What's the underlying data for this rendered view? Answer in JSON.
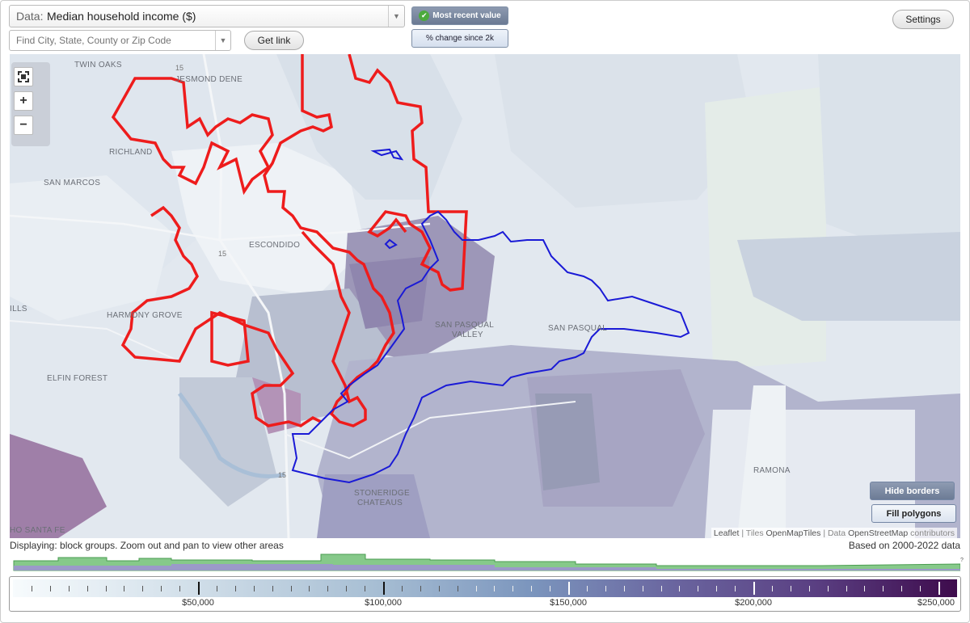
{
  "header": {
    "data_label": "Data:",
    "data_value": "Median household income ($)",
    "search_placeholder": "Find City, State, County or Zip Code",
    "get_link": "Get link",
    "most_recent": "Most recent value",
    "pct_change": "% change since 2k",
    "settings": "Settings"
  },
  "map": {
    "places": {
      "twin_oaks": "TWIN OAKS",
      "jesmond_dene": "JESMOND DENE",
      "richland": "RICHLAND",
      "san_marcos": "SAN MARCOS",
      "escondido": "ESCONDIDO",
      "harmony_grove": "HARMONY GROVE",
      "elfin_forest": "ELFIN FOREST",
      "san_pasqual_valley_1": "SAN PASQUAL",
      "san_pasqual_valley_2": "VALLEY",
      "san_pasqual": "SAN PASQUAL",
      "stoneridge_1": "STONERIDGE",
      "stoneridge_2": "CHATEAUS",
      "ramona": "RAMONA",
      "rancho_santa_fe": "HO SANTA FE",
      "hills": "ILLS"
    },
    "highways": {
      "a": "15",
      "b": "15",
      "c": "15"
    },
    "buttons": {
      "hide_borders": "Hide borders",
      "fill_polygons": "Fill polygons"
    },
    "attribution": {
      "leaflet": "Leaflet",
      "sep1": " | Tiles ",
      "tiles": "OpenMapTiles",
      "sep2": " | Data ",
      "data": "OpenStreetMap",
      "contrib": " contributors"
    }
  },
  "footer": {
    "displaying": "Displaying: block groups. Zoom out and pan to view other areas",
    "based_on": "Based on 2000-2022 data",
    "question": "?"
  },
  "legend": {
    "ticks": [
      "$50,000",
      "$100,000",
      "$150,000",
      "$200,000",
      "$250,000"
    ],
    "tick_values": [
      50000,
      100000,
      150000,
      200000,
      250000
    ],
    "min": 0,
    "max": 255000
  },
  "colors": {
    "city_border": "#ee1c1c",
    "cdp_border": "#1a1ad6",
    "histogram_green": "#7bc47f",
    "histogram_purple": "#9a93cc"
  }
}
